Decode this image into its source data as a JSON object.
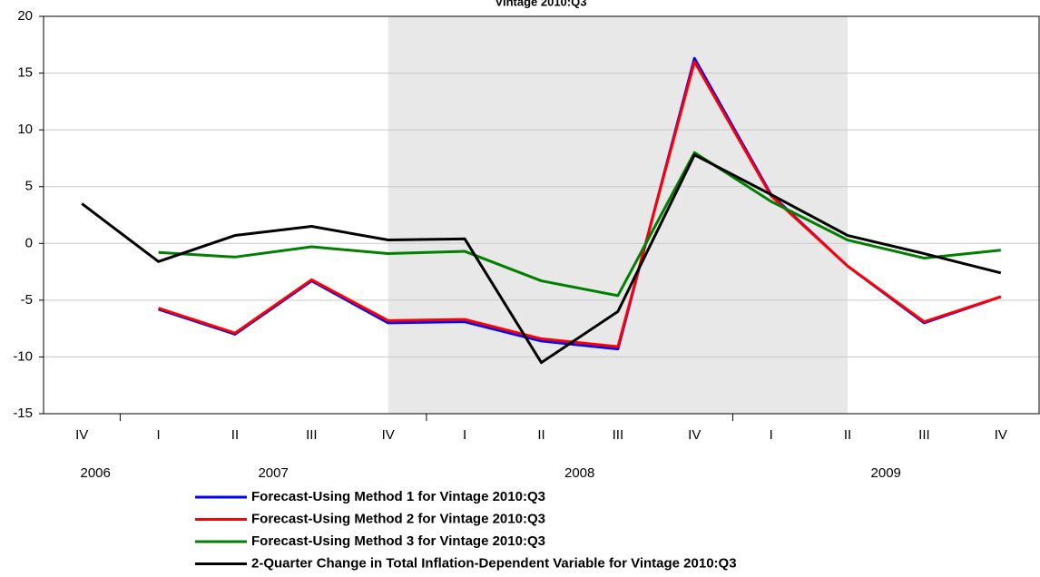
{
  "chart_data": {
    "type": "line",
    "title": "Vintage 2010:Q3",
    "categories": [
      "IV",
      "I",
      "II",
      "III",
      "IV",
      "I",
      "II",
      "III",
      "IV",
      "I",
      "II",
      "III",
      "IV"
    ],
    "years": [
      "2006",
      "2007",
      "2008",
      "2009"
    ],
    "shaded_span": [
      4,
      10
    ],
    "ylim": [
      -15,
      20
    ],
    "yticks": [
      -15,
      -10,
      -5,
      0,
      5,
      10,
      15,
      20
    ],
    "grid": true,
    "series": [
      {
        "name": "Forecast-Using Method 1 for Vintage 2010:Q3",
        "color": "#0000ff",
        "values": [
          null,
          -5.8,
          -8.0,
          -3.3,
          -7.0,
          -6.9,
          -8.6,
          -9.3,
          16.3,
          4.3,
          -2.0,
          -7.0,
          -4.7
        ]
      },
      {
        "name": "Forecast-Using Method 2 for Vintage 2010:Q3",
        "color": "#ff0000",
        "values": [
          null,
          -5.7,
          -7.9,
          -3.2,
          -6.8,
          -6.7,
          -8.4,
          -9.1,
          16.0,
          4.2,
          -2.0,
          -6.9,
          -4.7
        ]
      },
      {
        "name": "Forecast-Using Method 3 for Vintage 2010:Q3",
        "color": "#008000",
        "values": [
          null,
          -0.8,
          -1.2,
          -0.3,
          -0.9,
          -0.7,
          -3.3,
          -4.6,
          8.0,
          3.7,
          0.3,
          -1.3,
          -0.6
        ]
      },
      {
        "name": "2-Quarter Change in Total Inflation-Dependent Variable for Vintage 2010:Q3",
        "color": "#000000",
        "values": [
          3.5,
          -1.6,
          0.7,
          1.5,
          0.3,
          0.4,
          -10.5,
          -6.0,
          7.8,
          4.3,
          0.7,
          -0.9,
          -2.6
        ]
      }
    ]
  }
}
